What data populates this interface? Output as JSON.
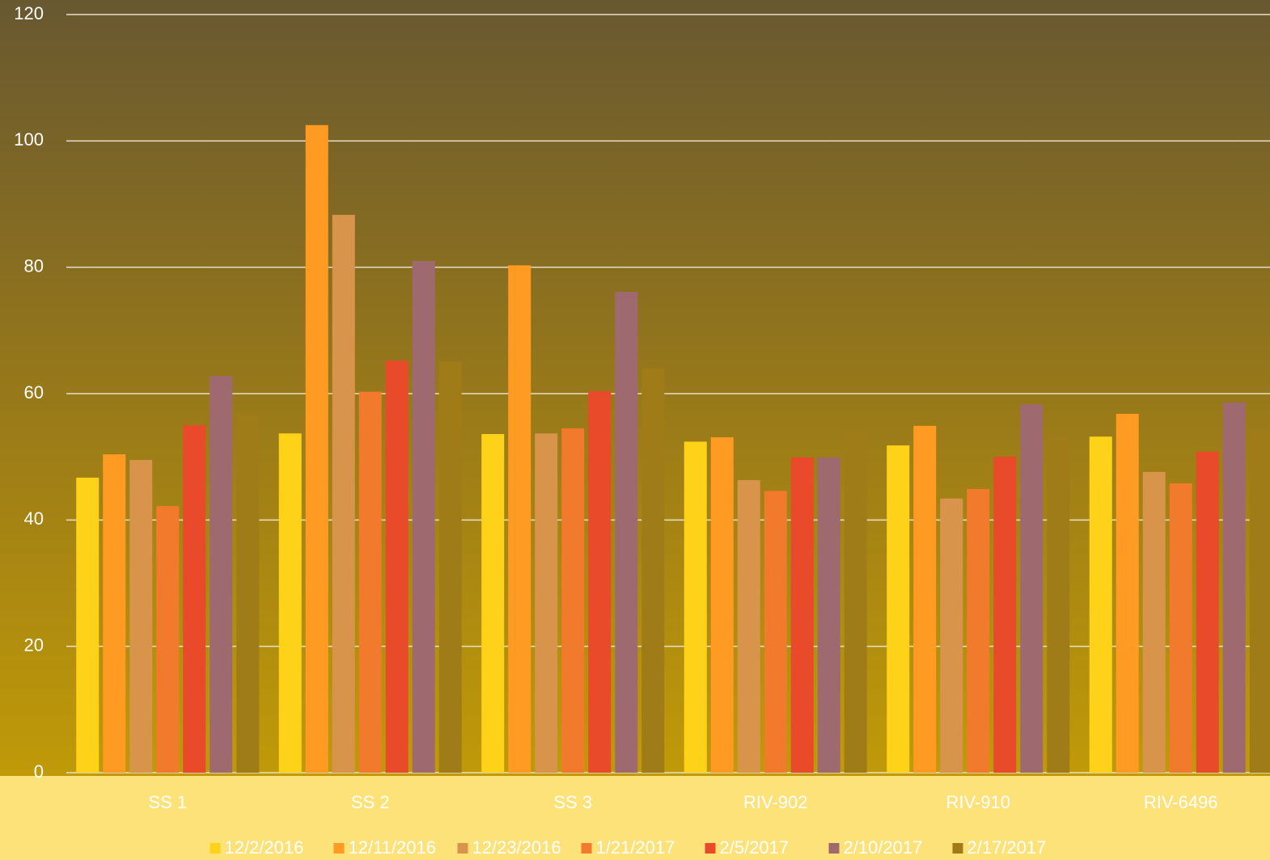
{
  "chart_data": {
    "type": "bar",
    "categories": [
      "SS 1",
      "SS 2",
      "SS 3",
      "RIV-902",
      "RIV-910",
      "RIV-6496"
    ],
    "series": [
      {
        "name": "12/2/2016",
        "color": "#ffd21a",
        "values": [
          46.7,
          53.7,
          53.6,
          52.4,
          51.8,
          53.2
        ]
      },
      {
        "name": "12/11/2016",
        "color": "#ff9a22",
        "values": [
          50.4,
          102.5,
          80.3,
          53.1,
          54.9,
          56.8
        ]
      },
      {
        "name": "12/23/2016",
        "color": "#d8944a",
        "values": [
          49.5,
          88.3,
          53.7,
          46.3,
          43.4,
          47.6
        ]
      },
      {
        "name": "1/21/2017",
        "color": "#f27a2c",
        "values": [
          42.2,
          60.3,
          54.5,
          44.6,
          44.9,
          45.8
        ]
      },
      {
        "name": "2/5/2017",
        "color": "#e84a2a",
        "values": [
          55.0,
          65.2,
          60.4,
          49.9,
          50.0,
          50.8
        ]
      },
      {
        "name": "2/10/2017",
        "color": "#9e6a70",
        "values": [
          62.8,
          81.0,
          76.1,
          49.9,
          58.3,
          58.6
        ]
      },
      {
        "name": "2/17/2017",
        "color": "#a07c18",
        "values": [
          56.7,
          65.1,
          64.0,
          54.1,
          53.2,
          54.2
        ]
      }
    ],
    "ylim": [
      0,
      120
    ],
    "yticks": [
      0,
      20,
      40,
      60,
      80,
      100,
      120
    ],
    "grid": true,
    "legend": "bottom"
  }
}
